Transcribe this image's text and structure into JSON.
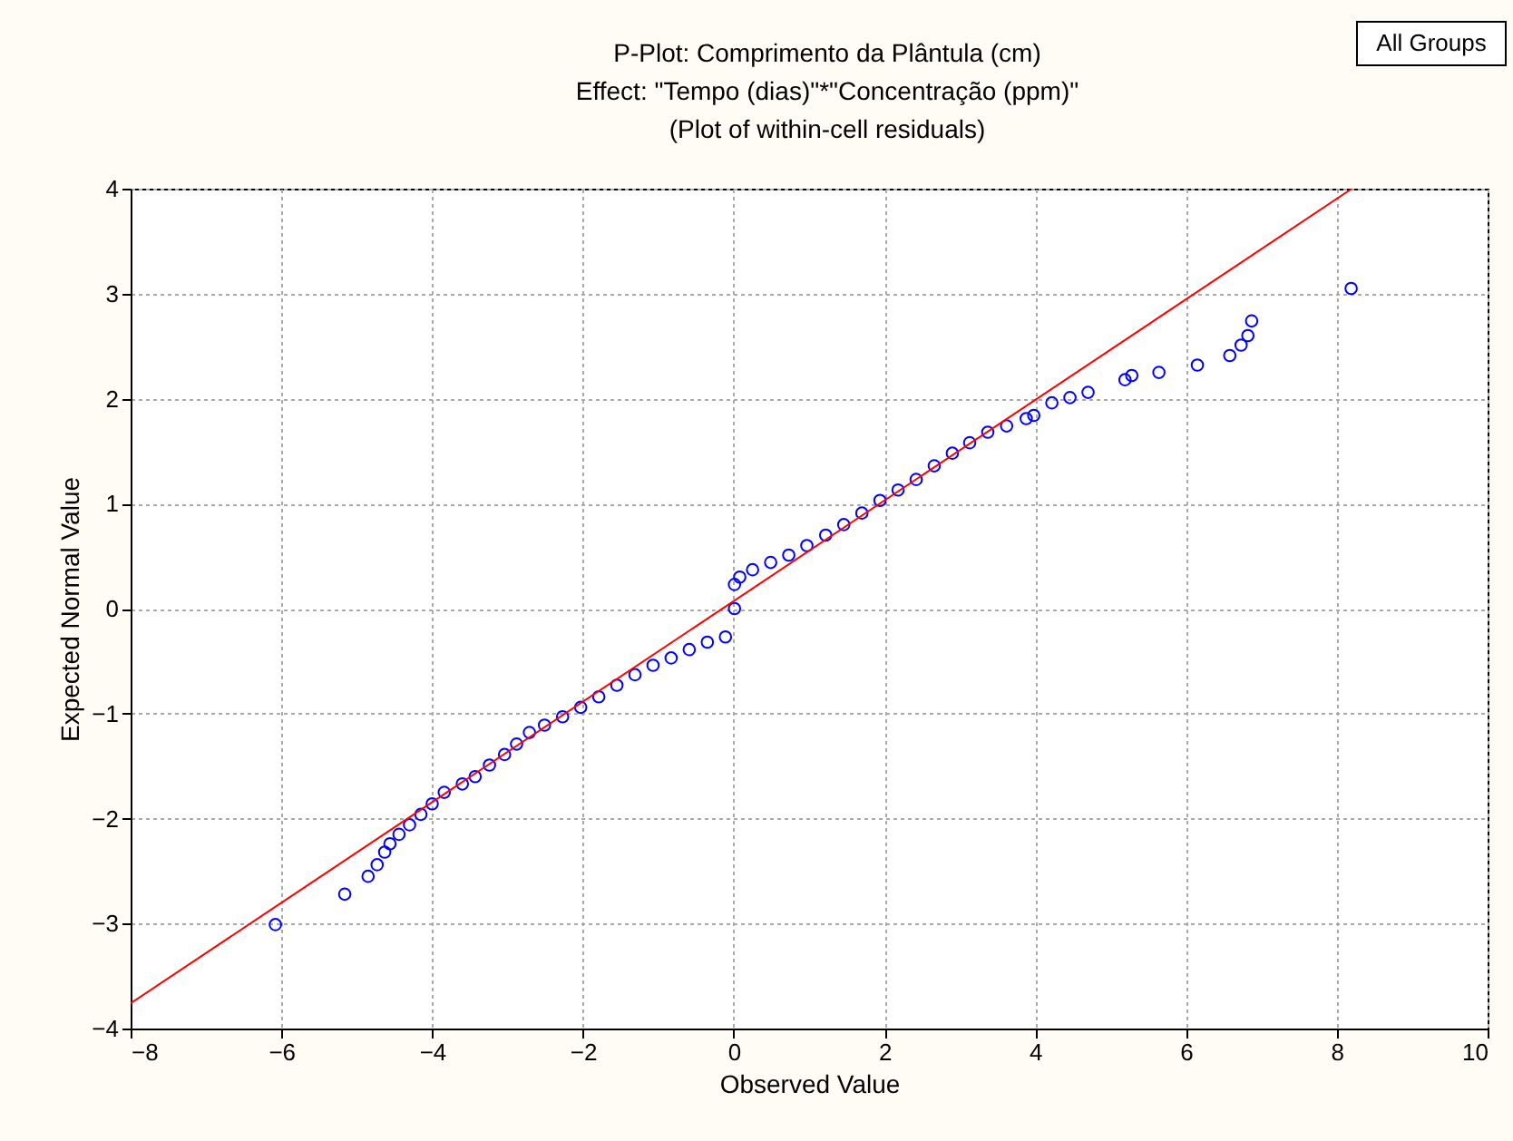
{
  "chart_data": {
    "type": "scatter",
    "title": "P-Plot: Comprimento da Plântula (cm)",
    "subtitle": [
      "Effect: \"Tempo (dias)\"*\"Concentração (ppm)\"",
      "(Plot of within-cell residuals)"
    ],
    "xlabel": "Observed Value",
    "ylabel": "Expected Normal Value",
    "annotations": [
      "All Groups"
    ],
    "series": [
      {
        "color": "#0000ff",
        "marker": "circle",
        "x": [
          -6.08,
          -5.16,
          -4.85,
          -4.73,
          -4.63,
          -4.56,
          -4.44,
          -4.3,
          -4.15,
          -4.0,
          -3.84,
          -3.6,
          -3.43,
          -3.24,
          -3.04,
          -2.88,
          -2.71,
          -2.51,
          -2.27,
          -2.03,
          -1.79,
          -1.55,
          -1.31,
          -1.07,
          -0.83,
          -0.59,
          -0.35,
          -0.11,
          0.01,
          0.01,
          0.08,
          0.25,
          0.49,
          0.73,
          0.97,
          1.22,
          1.46,
          1.7,
          1.94,
          2.18,
          2.42,
          2.66,
          2.9,
          3.13,
          3.37,
          3.62,
          3.88,
          3.98,
          4.22,
          4.46,
          4.7,
          5.19,
          5.28,
          5.64,
          6.15,
          6.58,
          6.73,
          6.82,
          6.87,
          8.19
        ],
        "values": [
          -3.01,
          -2.72,
          -2.55,
          -2.44,
          -2.32,
          -2.24,
          -2.15,
          -2.06,
          -1.96,
          -1.86,
          -1.75,
          -1.67,
          -1.6,
          -1.49,
          -1.39,
          -1.29,
          -1.18,
          -1.11,
          -1.03,
          -0.94,
          -0.84,
          -0.73,
          -0.63,
          -0.54,
          -0.47,
          -0.39,
          -0.32,
          -0.27,
          0.0,
          0.23,
          0.3,
          0.37,
          0.44,
          0.51,
          0.6,
          0.7,
          0.8,
          0.91,
          1.03,
          1.13,
          1.23,
          1.36,
          1.48,
          1.58,
          1.68,
          1.74,
          1.81,
          1.84,
          1.96,
          2.01,
          2.06,
          2.18,
          2.22,
          2.25,
          2.32,
          2.41,
          2.51,
          2.6,
          2.74,
          3.05
        ]
      },
      {
        "type": "line",
        "color": "#ff0000",
        "line_style": "solid",
        "x": [
          -8,
          8.2
        ],
        "values": [
          -3.76,
          4
        ]
      }
    ],
    "xlim": [
      -8,
      10
    ],
    "xticks": [
      -8,
      -6,
      -4,
      -2,
      0,
      2,
      4,
      6,
      8,
      10
    ],
    "ylim": [
      -4,
      4
    ],
    "yticks": [
      -4,
      -3,
      -2,
      -1,
      0,
      1,
      2,
      3,
      4
    ],
    "grid": true
  }
}
